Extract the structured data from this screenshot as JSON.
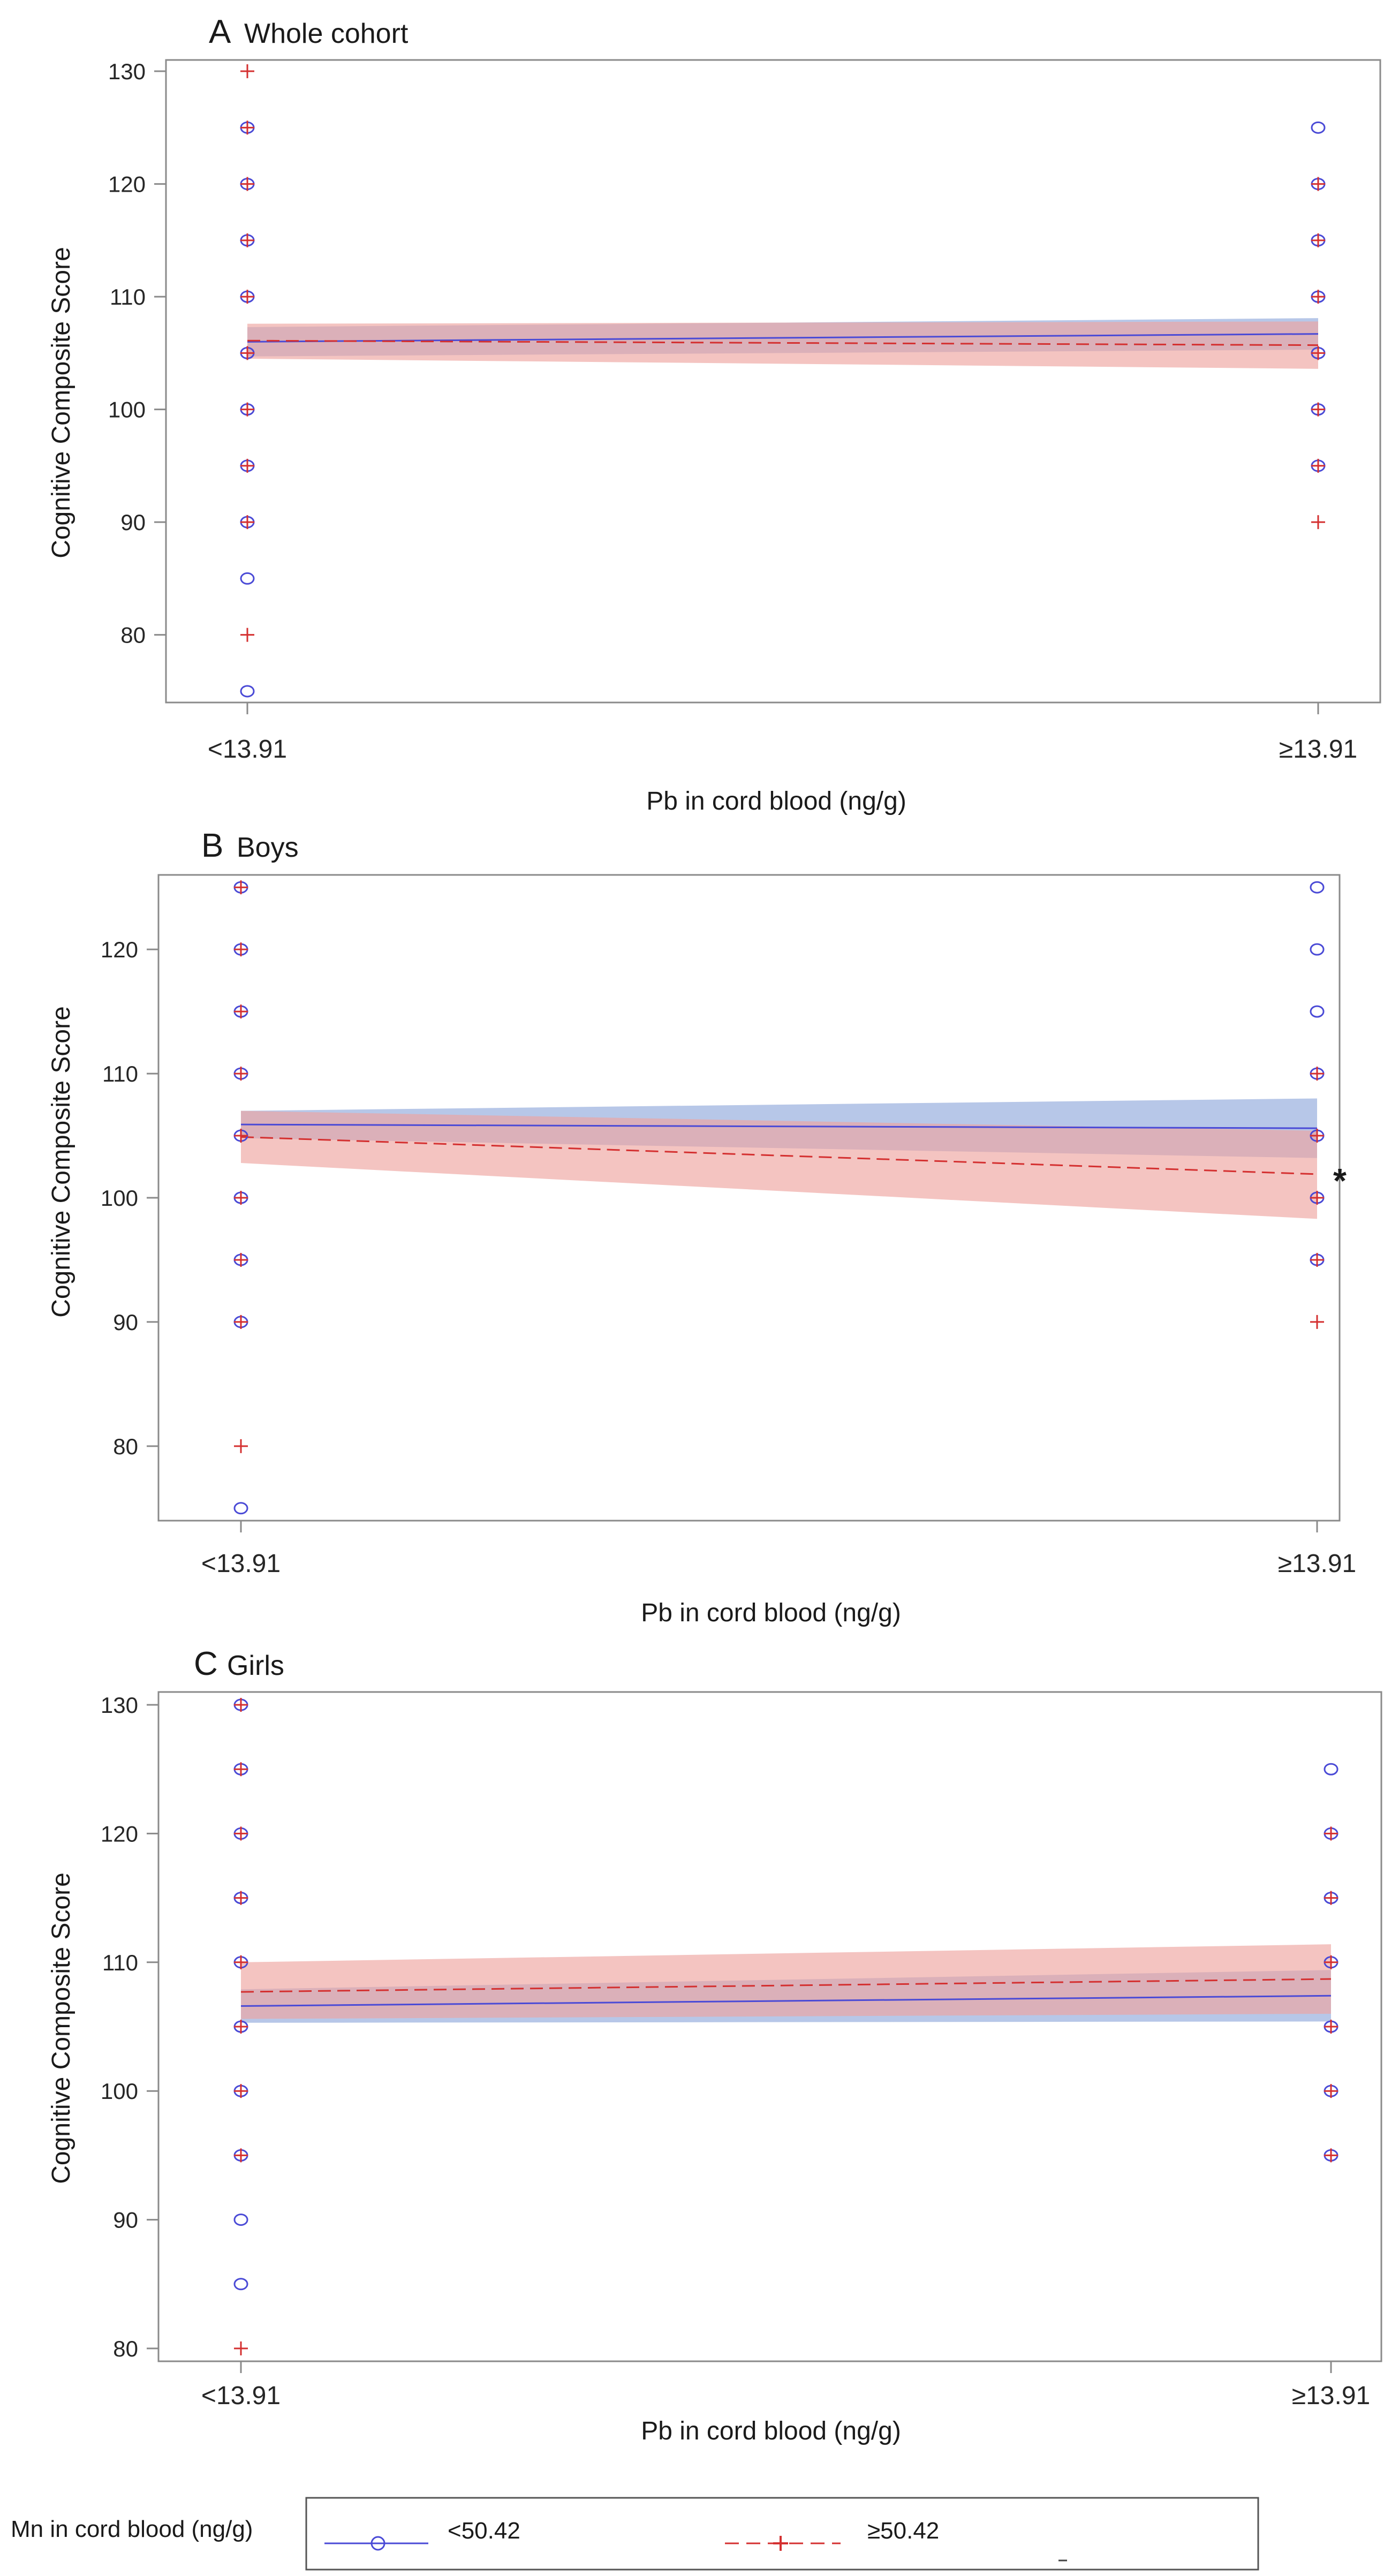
{
  "chart_data": [
    {
      "type": "scatter",
      "panel_letter": "A",
      "title": "Whole cohort",
      "xlabel": "Pb in cord blood (ng/g)",
      "ylabel": "Cognitive Composite Score",
      "categories": [
        "<13.91",
        "≥13.91"
      ],
      "ylim": [
        74,
        131
      ],
      "yticks": [
        80,
        90,
        100,
        110,
        120,
        130
      ],
      "series": [
        {
          "name": "<50.42",
          "marker": "circle",
          "color": "#4a4ad6",
          "points": [
            {
              "x": "<13.91",
              "y": 125
            },
            {
              "x": "<13.91",
              "y": 120
            },
            {
              "x": "<13.91",
              "y": 115
            },
            {
              "x": "<13.91",
              "y": 110
            },
            {
              "x": "<13.91",
              "y": 105
            },
            {
              "x": "<13.91",
              "y": 100
            },
            {
              "x": "<13.91",
              "y": 95
            },
            {
              "x": "<13.91",
              "y": 90
            },
            {
              "x": "<13.91",
              "y": 85
            },
            {
              "x": "<13.91",
              "y": 75
            },
            {
              "x": "≥13.91",
              "y": 125
            },
            {
              "x": "≥13.91",
              "y": 120
            },
            {
              "x": "≥13.91",
              "y": 115
            },
            {
              "x": "≥13.91",
              "y": 110
            },
            {
              "x": "≥13.91",
              "y": 105
            },
            {
              "x": "≥13.91",
              "y": 100
            },
            {
              "x": "≥13.91",
              "y": 95
            }
          ],
          "fit": [
            106.0,
            106.7
          ],
          "ci_low": [
            104.7,
            105.3
          ],
          "ci_high": [
            107.3,
            108.1
          ]
        },
        {
          "name": "≥50.42",
          "marker": "plus",
          "color": "#d43030",
          "points": [
            {
              "x": "<13.91",
              "y": 130
            },
            {
              "x": "<13.91",
              "y": 125
            },
            {
              "x": "<13.91",
              "y": 120
            },
            {
              "x": "<13.91",
              "y": 115
            },
            {
              "x": "<13.91",
              "y": 110
            },
            {
              "x": "<13.91",
              "y": 105
            },
            {
              "x": "<13.91",
              "y": 100
            },
            {
              "x": "<13.91",
              "y": 95
            },
            {
              "x": "<13.91",
              "y": 90
            },
            {
              "x": "<13.91",
              "y": 80
            },
            {
              "x": "≥13.91",
              "y": 120
            },
            {
              "x": "≥13.91",
              "y": 115
            },
            {
              "x": "≥13.91",
              "y": 110
            },
            {
              "x": "≥13.91",
              "y": 105
            },
            {
              "x": "≥13.91",
              "y": 100
            },
            {
              "x": "≥13.91",
              "y": 95
            },
            {
              "x": "≥13.91",
              "y": 90
            }
          ],
          "fit": [
            106.1,
            105.7
          ],
          "ci_low": [
            104.5,
            103.6
          ],
          "ci_high": [
            107.6,
            107.8
          ]
        }
      ]
    },
    {
      "type": "scatter",
      "panel_letter": "B",
      "title": "Boys",
      "xlabel": "Pb in cord blood (ng/g)",
      "ylabel": "Cognitive Composite Score",
      "categories": [
        "<13.91",
        "≥13.91"
      ],
      "ylim": [
        74,
        126
      ],
      "yticks": [
        80,
        90,
        100,
        110,
        120
      ],
      "annotation": "*",
      "series": [
        {
          "name": "<50.42",
          "marker": "circle",
          "color": "#4a4ad6",
          "points": [
            {
              "x": "<13.91",
              "y": 125
            },
            {
              "x": "<13.91",
              "y": 120
            },
            {
              "x": "<13.91",
              "y": 115
            },
            {
              "x": "<13.91",
              "y": 110
            },
            {
              "x": "<13.91",
              "y": 105
            },
            {
              "x": "<13.91",
              "y": 100
            },
            {
              "x": "<13.91",
              "y": 95
            },
            {
              "x": "<13.91",
              "y": 90
            },
            {
              "x": "<13.91",
              "y": 75
            },
            {
              "x": "≥13.91",
              "y": 125
            },
            {
              "x": "≥13.91",
              "y": 120
            },
            {
              "x": "≥13.91",
              "y": 115
            },
            {
              "x": "≥13.91",
              "y": 110
            },
            {
              "x": "≥13.91",
              "y": 105
            },
            {
              "x": "≥13.91",
              "y": 100
            },
            {
              "x": "≥13.91",
              "y": 95
            }
          ],
          "fit": [
            105.9,
            105.6
          ],
          "ci_low": [
            104.8,
            103.2
          ],
          "ci_high": [
            107.0,
            108.0
          ]
        },
        {
          "name": "≥50.42",
          "marker": "plus",
          "color": "#d43030",
          "points": [
            {
              "x": "<13.91",
              "y": 125
            },
            {
              "x": "<13.91",
              "y": 120
            },
            {
              "x": "<13.91",
              "y": 115
            },
            {
              "x": "<13.91",
              "y": 110
            },
            {
              "x": "<13.91",
              "y": 105
            },
            {
              "x": "<13.91",
              "y": 100
            },
            {
              "x": "<13.91",
              "y": 95
            },
            {
              "x": "<13.91",
              "y": 90
            },
            {
              "x": "<13.91",
              "y": 80
            },
            {
              "x": "≥13.91",
              "y": 110
            },
            {
              "x": "≥13.91",
              "y": 105
            },
            {
              "x": "≥13.91",
              "y": 100
            },
            {
              "x": "≥13.91",
              "y": 95
            },
            {
              "x": "≥13.91",
              "y": 90
            }
          ],
          "fit": [
            104.9,
            101.9
          ],
          "ci_low": [
            102.8,
            98.3
          ],
          "ci_high": [
            107.0,
            105.4
          ]
        }
      ]
    },
    {
      "type": "scatter",
      "panel_letter": "C",
      "title": "Girls",
      "xlabel": "Pb in cord blood (ng/g)",
      "ylabel": "Cognitive Composite Score",
      "categories": [
        "<13.91",
        "≥13.91"
      ],
      "ylim": [
        79,
        131
      ],
      "yticks": [
        80,
        90,
        100,
        110,
        120,
        130
      ],
      "series": [
        {
          "name": "<50.42",
          "marker": "circle",
          "color": "#4a4ad6",
          "points": [
            {
              "x": "<13.91",
              "y": 130
            },
            {
              "x": "<13.91",
              "y": 125
            },
            {
              "x": "<13.91",
              "y": 120
            },
            {
              "x": "<13.91",
              "y": 115
            },
            {
              "x": "<13.91",
              "y": 110
            },
            {
              "x": "<13.91",
              "y": 105
            },
            {
              "x": "<13.91",
              "y": 100
            },
            {
              "x": "<13.91",
              "y": 95
            },
            {
              "x": "<13.91",
              "y": 90
            },
            {
              "x": "<13.91",
              "y": 85
            },
            {
              "x": "≥13.91",
              "y": 125
            },
            {
              "x": "≥13.91",
              "y": 120
            },
            {
              "x": "≥13.91",
              "y": 115
            },
            {
              "x": "≥13.91",
              "y": 110
            },
            {
              "x": "≥13.91",
              "y": 105
            },
            {
              "x": "≥13.91",
              "y": 100
            },
            {
              "x": "≥13.91",
              "y": 95
            }
          ],
          "fit": [
            106.6,
            107.4
          ],
          "ci_low": [
            105.3,
            105.4
          ],
          "ci_high": [
            107.9,
            109.4
          ]
        },
        {
          "name": "≥50.42",
          "marker": "plus",
          "color": "#d43030",
          "points": [
            {
              "x": "<13.91",
              "y": 130
            },
            {
              "x": "<13.91",
              "y": 125
            },
            {
              "x": "<13.91",
              "y": 120
            },
            {
              "x": "<13.91",
              "y": 115
            },
            {
              "x": "<13.91",
              "y": 110
            },
            {
              "x": "<13.91",
              "y": 105
            },
            {
              "x": "<13.91",
              "y": 100
            },
            {
              "x": "<13.91",
              "y": 95
            },
            {
              "x": "<13.91",
              "y": 80
            },
            {
              "x": "≥13.91",
              "y": 120
            },
            {
              "x": "≥13.91",
              "y": 115
            },
            {
              "x": "≥13.91",
              "y": 110
            },
            {
              "x": "≥13.91",
              "y": 105
            },
            {
              "x": "≥13.91",
              "y": 100
            },
            {
              "x": "≥13.91",
              "y": 95
            }
          ],
          "fit": [
            107.7,
            108.7
          ],
          "ci_low": [
            105.6,
            106.0
          ],
          "ci_high": [
            110.0,
            111.4
          ]
        }
      ]
    }
  ],
  "legend": {
    "title": "Mn in cord blood (ng/g)",
    "entries": [
      {
        "label": "<50.42",
        "marker": "circle",
        "line": "solid",
        "color": "#4a4ad6"
      },
      {
        "label": "≥50.42",
        "marker": "plus",
        "line": "dashed",
        "color": "#d43030"
      }
    ]
  },
  "colors": {
    "low_mn_line": "#4a4ad6",
    "high_mn_line": "#d43030",
    "low_mn_band": "#9fb4e0",
    "high_mn_band": "#eea59f",
    "axis": "#8a8a8a"
  }
}
